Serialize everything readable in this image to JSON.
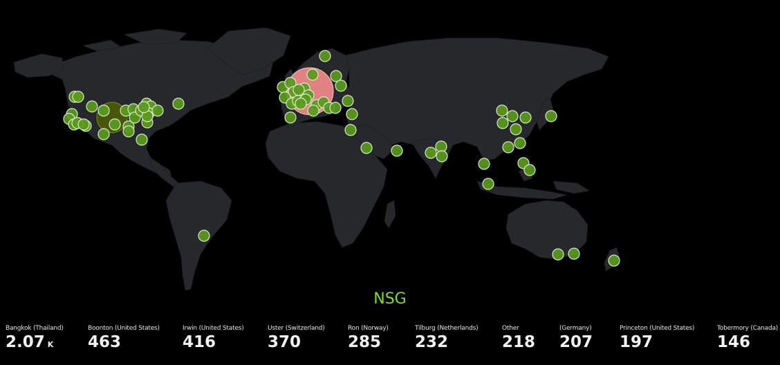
{
  "title": "NSG",
  "colors": {
    "background": "#000000",
    "land": "#26282c",
    "point": "#5a9a1e",
    "highlight_eu": "#f08a8a",
    "highlight_us": "#4a5a08",
    "title": "#7be02f"
  },
  "legend": [
    {
      "label": "Bangkok (Thailand)",
      "value": "2.07",
      "unit": "K"
    },
    {
      "label": "Boonton (United States)",
      "value": "463",
      "unit": ""
    },
    {
      "label": "Irwin (United States)",
      "value": "416",
      "unit": ""
    },
    {
      "label": "Uster (Switzerland)",
      "value": "370",
      "unit": ""
    },
    {
      "label": "Ron (Norway)",
      "value": "285",
      "unit": ""
    },
    {
      "label": "Tilburg (Netherlands)",
      "value": "232",
      "unit": ""
    },
    {
      "label": "Other",
      "value": "218",
      "unit": ""
    },
    {
      "label": "(Germany)",
      "value": "207",
      "unit": ""
    },
    {
      "label": "Princeton (United States)",
      "value": "197",
      "unit": ""
    },
    {
      "label": "Tobermory (Canada)",
      "value": "146",
      "unit": ""
    }
  ]
}
